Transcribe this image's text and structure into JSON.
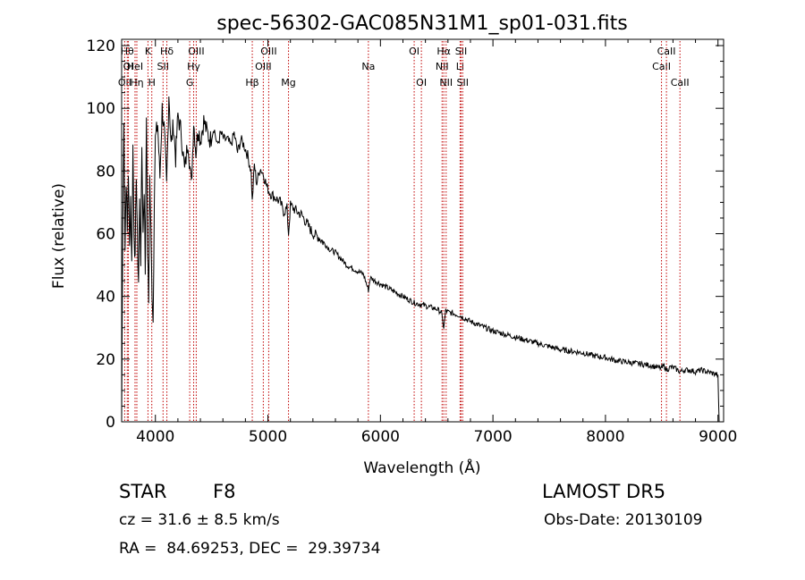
{
  "chart_data": {
    "type": "line",
    "title": "spec-56302-GAC085N31M1_sp01-031.fits",
    "xlabel": "Wavelength (Å)",
    "ylabel": "Flux (relative)",
    "xlim": [
      3700,
      9050
    ],
    "ylim": [
      0,
      122
    ],
    "xticks": [
      4000,
      5000,
      6000,
      7000,
      8000,
      9000
    ],
    "yticks": [
      0,
      20,
      40,
      60,
      80,
      100,
      120
    ],
    "grid": false,
    "line_color": "#000000",
    "marker_color": "#c00000",
    "spectrum": {
      "x": [
        3700,
        3710,
        3720,
        3730,
        3740,
        3750,
        3760,
        3770,
        3780,
        3790,
        3800,
        3810,
        3820,
        3830,
        3840,
        3850,
        3860,
        3870,
        3880,
        3890,
        3900,
        3910,
        3920,
        3930,
        3940,
        3950,
        3960,
        3970,
        3980,
        3990,
        4000,
        4020,
        4040,
        4060,
        4080,
        4100,
        4120,
        4140,
        4160,
        4180,
        4200,
        4230,
        4260,
        4290,
        4320,
        4340,
        4360,
        4380,
        4400,
        4430,
        4460,
        4490,
        4520,
        4550,
        4580,
        4610,
        4640,
        4670,
        4700,
        4730,
        4760,
        4790,
        4820,
        4850,
        4861,
        4880,
        4900,
        4930,
        4960,
        4990,
        5020,
        5050,
        5080,
        5110,
        5140,
        5170,
        5183,
        5200,
        5230,
        5260,
        5300,
        5350,
        5400,
        5450,
        5500,
        5550,
        5600,
        5650,
        5700,
        5750,
        5800,
        5850,
        5893,
        5910,
        5950,
        6000,
        6050,
        6100,
        6150,
        6200,
        6250,
        6300,
        6350,
        6400,
        6450,
        6500,
        6540,
        6563,
        6580,
        6600,
        6650,
        6700,
        6750,
        6800,
        6900,
        7000,
        7100,
        7200,
        7300,
        7400,
        7500,
        7600,
        7700,
        7800,
        7900,
        8000,
        8100,
        8200,
        8300,
        8400,
        8498,
        8520,
        8542,
        8580,
        8620,
        8662,
        8700,
        8750,
        8800,
        8850,
        8900,
        8950,
        9000,
        9010
      ],
      "y": [
        0,
        62,
        98,
        55,
        78,
        60,
        80,
        55,
        72,
        50,
        88,
        62,
        50,
        80,
        58,
        45,
        70,
        52,
        88,
        60,
        75,
        48,
        100,
        55,
        38,
        78,
        60,
        42,
        32,
        72,
        90,
        95,
        78,
        100,
        92,
        75,
        105,
        88,
        95,
        84,
        98,
        92,
        80,
        90,
        75,
        96,
        86,
        94,
        90,
        96,
        92,
        90,
        94,
        88,
        92,
        90,
        90,
        88,
        92,
        86,
        90,
        88,
        85,
        80,
        70,
        82,
        76,
        81,
        79,
        75,
        73,
        72,
        71,
        70,
        67,
        68,
        60,
        69,
        68,
        67,
        66,
        63,
        60,
        59,
        57,
        55,
        54,
        52,
        50,
        49,
        48,
        47,
        42,
        46,
        45,
        44,
        43,
        42,
        41,
        40,
        39,
        38,
        37.5,
        37,
        36.5,
        36,
        35,
        30,
        35.5,
        35,
        34.5,
        34,
        33,
        32,
        30.5,
        29,
        28,
        27,
        26,
        25,
        24,
        23,
        22.5,
        22,
        21,
        20.5,
        19.5,
        19,
        18.5,
        18,
        17,
        18,
        16.5,
        17.5,
        17,
        16,
        16.5,
        16.5,
        16,
        16.5,
        16,
        15.5,
        15,
        0
      ]
    },
    "lines": [
      {
        "label": "OII",
        "x": 3727,
        "row": 3
      },
      {
        "label": "Hθ",
        "x": 3750,
        "row": 1
      },
      {
        "label": "OI",
        "x": 3760,
        "row": 2
      },
      {
        "label": "Hη",
        "x": 3835,
        "row": 3
      },
      {
        "label": "HeI",
        "x": 3819,
        "row": 2
      },
      {
        "label": "K",
        "x": 3934,
        "row": 1
      },
      {
        "label": "H",
        "x": 3968,
        "row": 3
      },
      {
        "label": "SII",
        "x": 4068,
        "row": 2
      },
      {
        "label": "Hδ",
        "x": 4102,
        "row": 1
      },
      {
        "label": "G",
        "x": 4305,
        "row": 3
      },
      {
        "label": "OIII",
        "x": 4363,
        "row": 1
      },
      {
        "label": "Hγ",
        "x": 4340,
        "row": 2
      },
      {
        "label": "Hβ",
        "x": 4861,
        "row": 3
      },
      {
        "label": "OIII",
        "x": 4959,
        "row": 2
      },
      {
        "label": "OIII",
        "x": 5007,
        "row": 1
      },
      {
        "label": "Mg",
        "x": 5183,
        "row": 3
      },
      {
        "label": "Na",
        "x": 5893,
        "row": 2
      },
      {
        "label": "OI",
        "x": 6300,
        "row": 1
      },
      {
        "label": "OI",
        "x": 6364,
        "row": 3
      },
      {
        "label": "NII",
        "x": 6548,
        "row": 2
      },
      {
        "label": "Hα",
        "x": 6563,
        "row": 1
      },
      {
        "label": "NII",
        "x": 6584,
        "row": 3
      },
      {
        "label": "Li",
        "x": 6708,
        "row": 2
      },
      {
        "label": "SII",
        "x": 6717,
        "row": 1
      },
      {
        "label": "SII",
        "x": 6731,
        "row": 3
      },
      {
        "label": "CaII",
        "x": 8498,
        "row": 2
      },
      {
        "label": "CaII",
        "x": 8542,
        "row": 1
      },
      {
        "label": "CaII",
        "x": 8662,
        "row": 3
      }
    ]
  },
  "info": {
    "class": "STAR",
    "subclass": "F8",
    "survey": "LAMOST DR5",
    "cz": "cz = 31.6 ± 8.5 km/s",
    "obs_date": "Obs-Date: 20130109",
    "radec": "RA =  84.69253, DEC =  29.39734"
  }
}
